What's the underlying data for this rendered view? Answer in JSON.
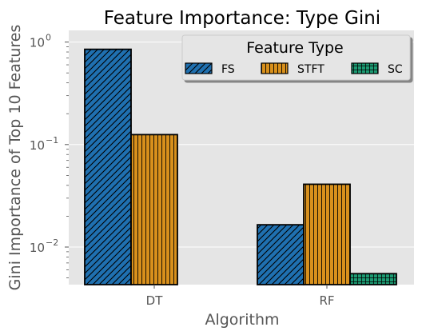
{
  "chart_data": {
    "type": "bar",
    "title": "Feature Importance: Type Gini",
    "xlabel": "Algorithm",
    "ylabel": "Gini Importance of Top 10 Features",
    "yscale": "log",
    "ylim": [
      0.0043,
      1.3
    ],
    "yticks": [
      {
        "value": 1,
        "base": "10",
        "exp": "0"
      },
      {
        "value": 0.1,
        "base": "10",
        "exp": "−1"
      },
      {
        "value": 0.01,
        "base": "10",
        "exp": "−2"
      }
    ],
    "categories": [
      "DT",
      "RF"
    ],
    "series": [
      {
        "name": "FS",
        "values": [
          0.85,
          0.0165
        ],
        "color": "#1f70b0",
        "pattern": "diagonal-hatch"
      },
      {
        "name": "STFT",
        "values": [
          0.125,
          0.041
        ],
        "color": "#d8901c",
        "pattern": "vertical-hatch"
      },
      {
        "name": "SC",
        "values": [
          0.0,
          0.0055
        ],
        "color": "#1c9a72",
        "pattern": "grid-hatch"
      }
    ],
    "legend": {
      "title": "Feature Type",
      "placement": "top-right"
    },
    "grid": true,
    "background": "#e5e5e5"
  }
}
